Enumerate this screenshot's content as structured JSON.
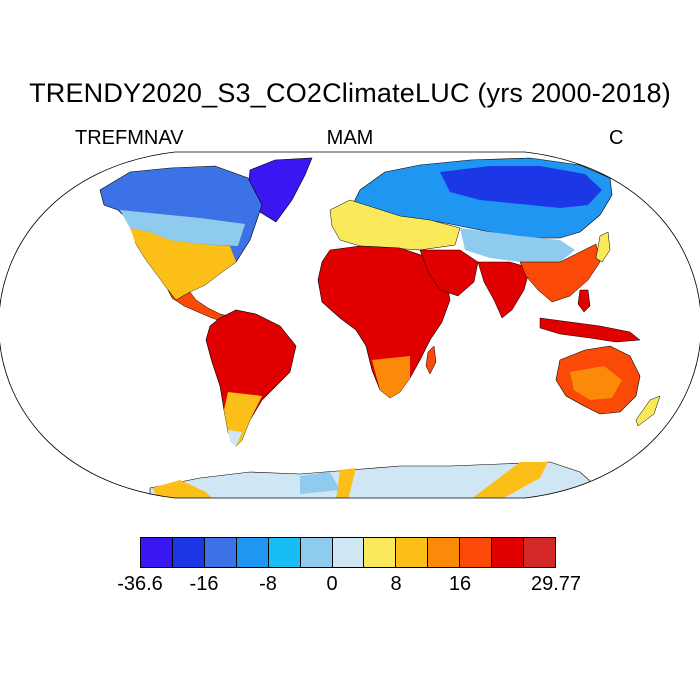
{
  "title": "TRENDY2020_S3_CO2ClimateLUC (yrs 2000-2018)",
  "left_label": "TREFMNAV",
  "center_label": "MAM",
  "right_label": "C",
  "colorbar": {
    "colors": [
      "#3a16f2",
      "#1c38e6",
      "#3c72e6",
      "#1f96f2",
      "#17bdf4",
      "#8fcbee",
      "#cfe7f5",
      "#fbe95c",
      "#fbbf18",
      "#fb8a08",
      "#fb4a08",
      "#e00000",
      "#d42828"
    ],
    "labels": [
      "-36.6",
      "-16",
      "-8",
      "0",
      "8",
      "16",
      "29.77"
    ]
  }
}
